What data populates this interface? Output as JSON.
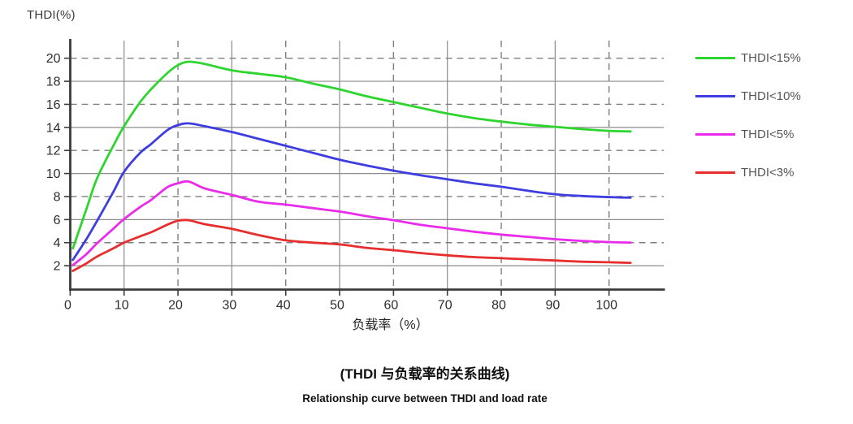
{
  "chart_data": {
    "type": "line",
    "title": "",
    "xlabel": "负载率（%）",
    "ylabel": "THDI(%)",
    "xlim": [
      0,
      110
    ],
    "ylim": [
      0,
      21.5
    ],
    "x_ticks": [
      0,
      10,
      20,
      30,
      40,
      50,
      60,
      70,
      80,
      90,
      100
    ],
    "y_ticks": [
      2,
      4,
      6,
      8,
      10,
      12,
      14,
      16,
      18,
      20
    ],
    "grid": {
      "horizontal_solid": [
        2,
        6,
        10,
        14,
        18
      ],
      "horizontal_dashed": [
        4,
        8,
        12,
        16,
        20
      ],
      "vertical_solid": [
        10,
        30,
        50,
        70,
        90
      ],
      "vertical_dashed": [
        20,
        40,
        60,
        80,
        100
      ]
    },
    "legend_position": "right",
    "x": [
      0.5,
      3,
      5,
      8,
      10,
      13,
      15,
      18,
      20,
      22,
      25,
      30,
      35,
      40,
      45,
      50,
      55,
      60,
      65,
      70,
      75,
      80,
      85,
      90,
      95,
      100,
      104
    ],
    "series": [
      {
        "key": "thdi-15",
        "name": "THDI<15%",
        "color": "#2fd52f",
        "values": [
          3.5,
          6.9,
          9.6,
          12.4,
          14.1,
          16.2,
          17.3,
          18.7,
          19.4,
          19.7,
          19.5,
          18.95,
          18.65,
          18.35,
          17.8,
          17.3,
          16.7,
          16.2,
          15.7,
          15.2,
          14.8,
          14.5,
          14.25,
          14.05,
          13.85,
          13.7,
          13.65
        ]
      },
      {
        "key": "thdi-10",
        "name": "THDI<10%",
        "color": "#3d3de0",
        "values": [
          2.5,
          4.3,
          5.9,
          8.4,
          10.15,
          11.8,
          12.55,
          13.75,
          14.2,
          14.35,
          14.1,
          13.6,
          13.0,
          12.4,
          11.8,
          11.2,
          10.7,
          10.25,
          9.85,
          9.5,
          9.15,
          8.85,
          8.5,
          8.2,
          8.05,
          7.95,
          7.9
        ]
      },
      {
        "key": "thdi-5",
        "name": "THDI<5%",
        "color": "#ea2cea",
        "values": [
          2.05,
          3.0,
          3.95,
          5.2,
          6.05,
          7.1,
          7.7,
          8.8,
          9.15,
          9.3,
          8.7,
          8.15,
          7.55,
          7.3,
          7.0,
          6.7,
          6.3,
          5.95,
          5.55,
          5.25,
          4.95,
          4.7,
          4.5,
          4.3,
          4.15,
          4.05,
          4.0
        ]
      },
      {
        "key": "thdi-3",
        "name": "THDI<3%",
        "color": "#e62e2e",
        "values": [
          1.55,
          2.2,
          2.8,
          3.5,
          4.0,
          4.55,
          4.9,
          5.55,
          5.9,
          5.95,
          5.6,
          5.2,
          4.65,
          4.2,
          4.0,
          3.85,
          3.55,
          3.35,
          3.1,
          2.9,
          2.75,
          2.65,
          2.55,
          2.45,
          2.35,
          2.3,
          2.25
        ]
      }
    ]
  },
  "captions": {
    "zh": "(THDI 与负载率的关系曲线)",
    "en": "Relationship curve between THDI and load rate"
  },
  "colors": {
    "axis": "#3b3b3b",
    "grid_solid": "#8c8c8c",
    "grid_dashed": "#7f7f7f",
    "tick_text": "#2d2d2d",
    "background": "#ffffff"
  }
}
